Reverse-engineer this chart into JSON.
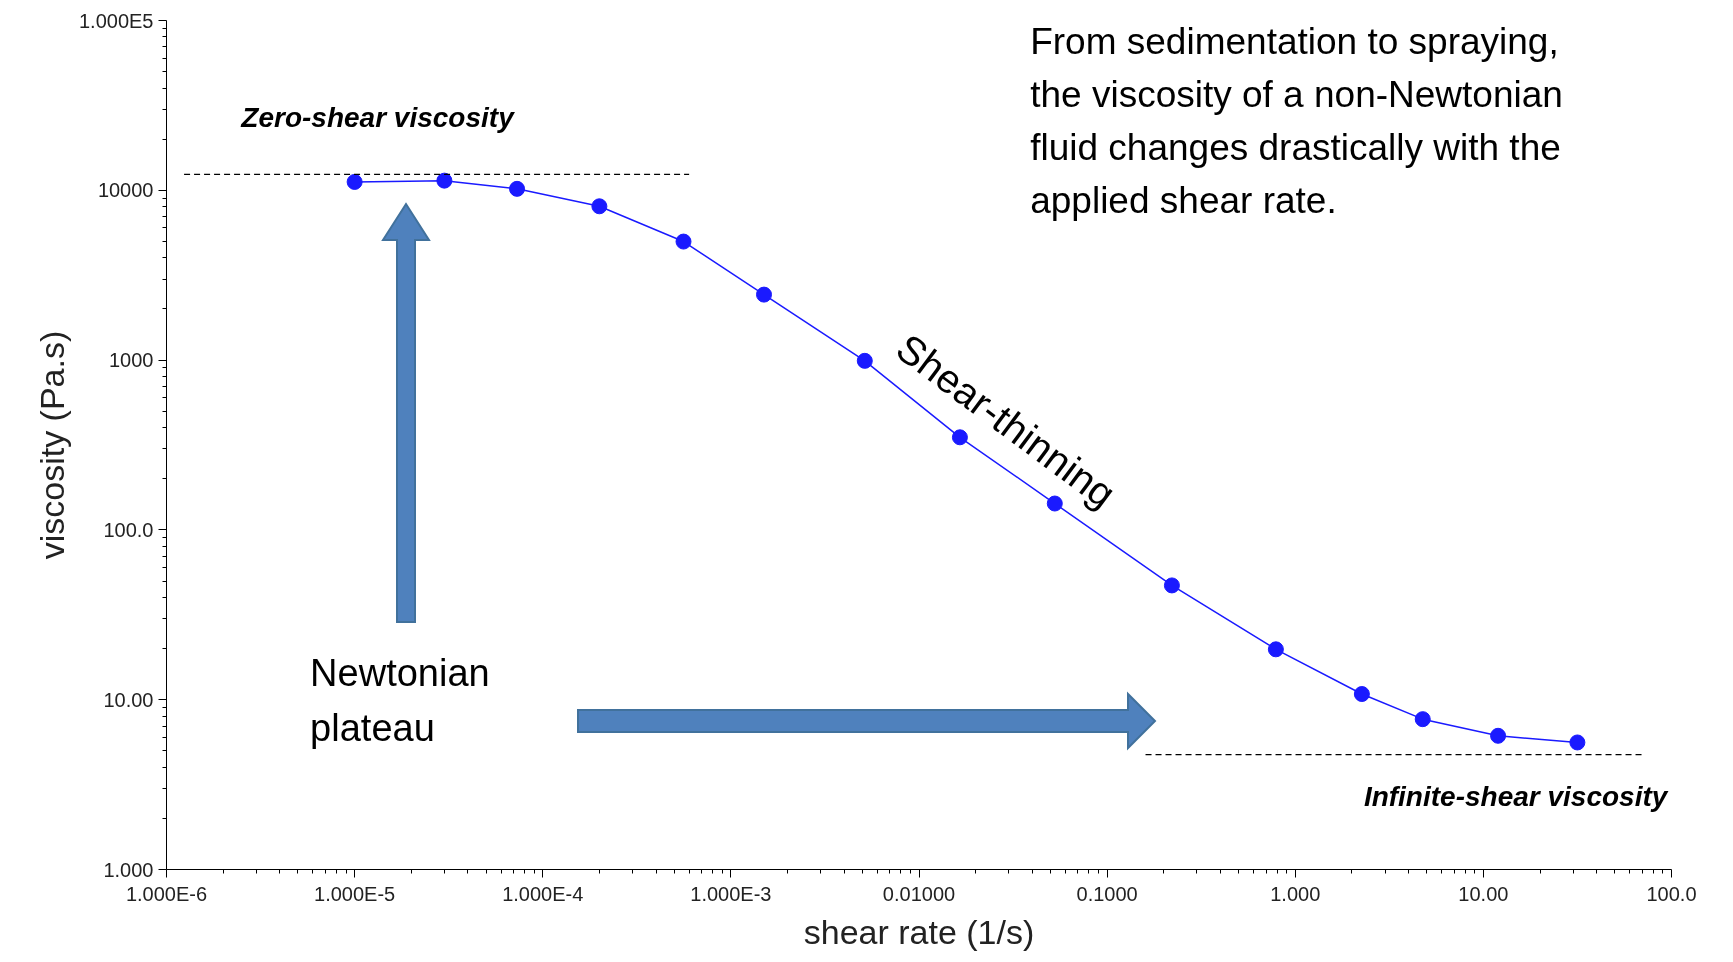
{
  "chart_data": {
    "type": "line",
    "xlabel": "shear rate (1/s)",
    "ylabel": "viscosity (Pa.s)",
    "log": "xy",
    "grid": false,
    "marker": "circle",
    "line_style": "solid",
    "xlim": [
      1e-06,
      100
    ],
    "ylim": [
      1,
      100000
    ],
    "xticks": [
      {
        "value": 1e-06,
        "label": "1.000E-6"
      },
      {
        "value": 1e-05,
        "label": "1.000E-5"
      },
      {
        "value": 0.0001,
        "label": "1.000E-4"
      },
      {
        "value": 0.001,
        "label": "1.000E-3"
      },
      {
        "value": 0.01,
        "label": "0.01000"
      },
      {
        "value": 0.1,
        "label": "0.1000"
      },
      {
        "value": 1,
        "label": "1.000"
      },
      {
        "value": 10,
        "label": "10.00"
      },
      {
        "value": 100,
        "label": "100.0"
      }
    ],
    "yticks": [
      {
        "value": 1,
        "label": "1.000"
      },
      {
        "value": 10,
        "label": "10.00"
      },
      {
        "value": 100,
        "label": "100.0"
      },
      1000,
      10000,
      {
        "value": 100000,
        "label": "1.000E5"
      }
    ],
    "series": [
      {
        "color": "#1a1aff",
        "x": [
          1e-05,
          3e-05,
          7.3e-05,
          0.0002,
          0.00056,
          0.0015,
          0.00515,
          0.0165,
          0.0527,
          0.221,
          0.789,
          2.26,
          4.76,
          11.97,
          31.6
        ],
        "values": [
          11200,
          11400,
          10200,
          8050,
          4990,
          2430,
          990,
          351,
          143,
          47.1,
          19.8,
          10.8,
          7.68,
          6.13,
          5.6
        ]
      },
      {
        "type": "line",
        "marker": "none",
        "line_style": "dashed",
        "color": "#000000",
        "x": [
          1.24e-06,
          0.0006
        ],
        "values": [
          12400,
          12400
        ]
      },
      {
        "type": "line",
        "marker": "none",
        "line_style": "dashed",
        "color": "#000000",
        "x": [
          0.16,
          72
        ],
        "values": [
          4.75,
          4.75
        ]
      }
    ],
    "annotations": [
      "From sedimentation to spraying,\nthe viscosity of a non-Newtonian\nfluid changes drastically with the\napplied shear rate.",
      "Zero-shear viscosity",
      "Shear-thinning",
      "Newtonian\nplateau",
      "Infinite-shear viscosity"
    ]
  }
}
